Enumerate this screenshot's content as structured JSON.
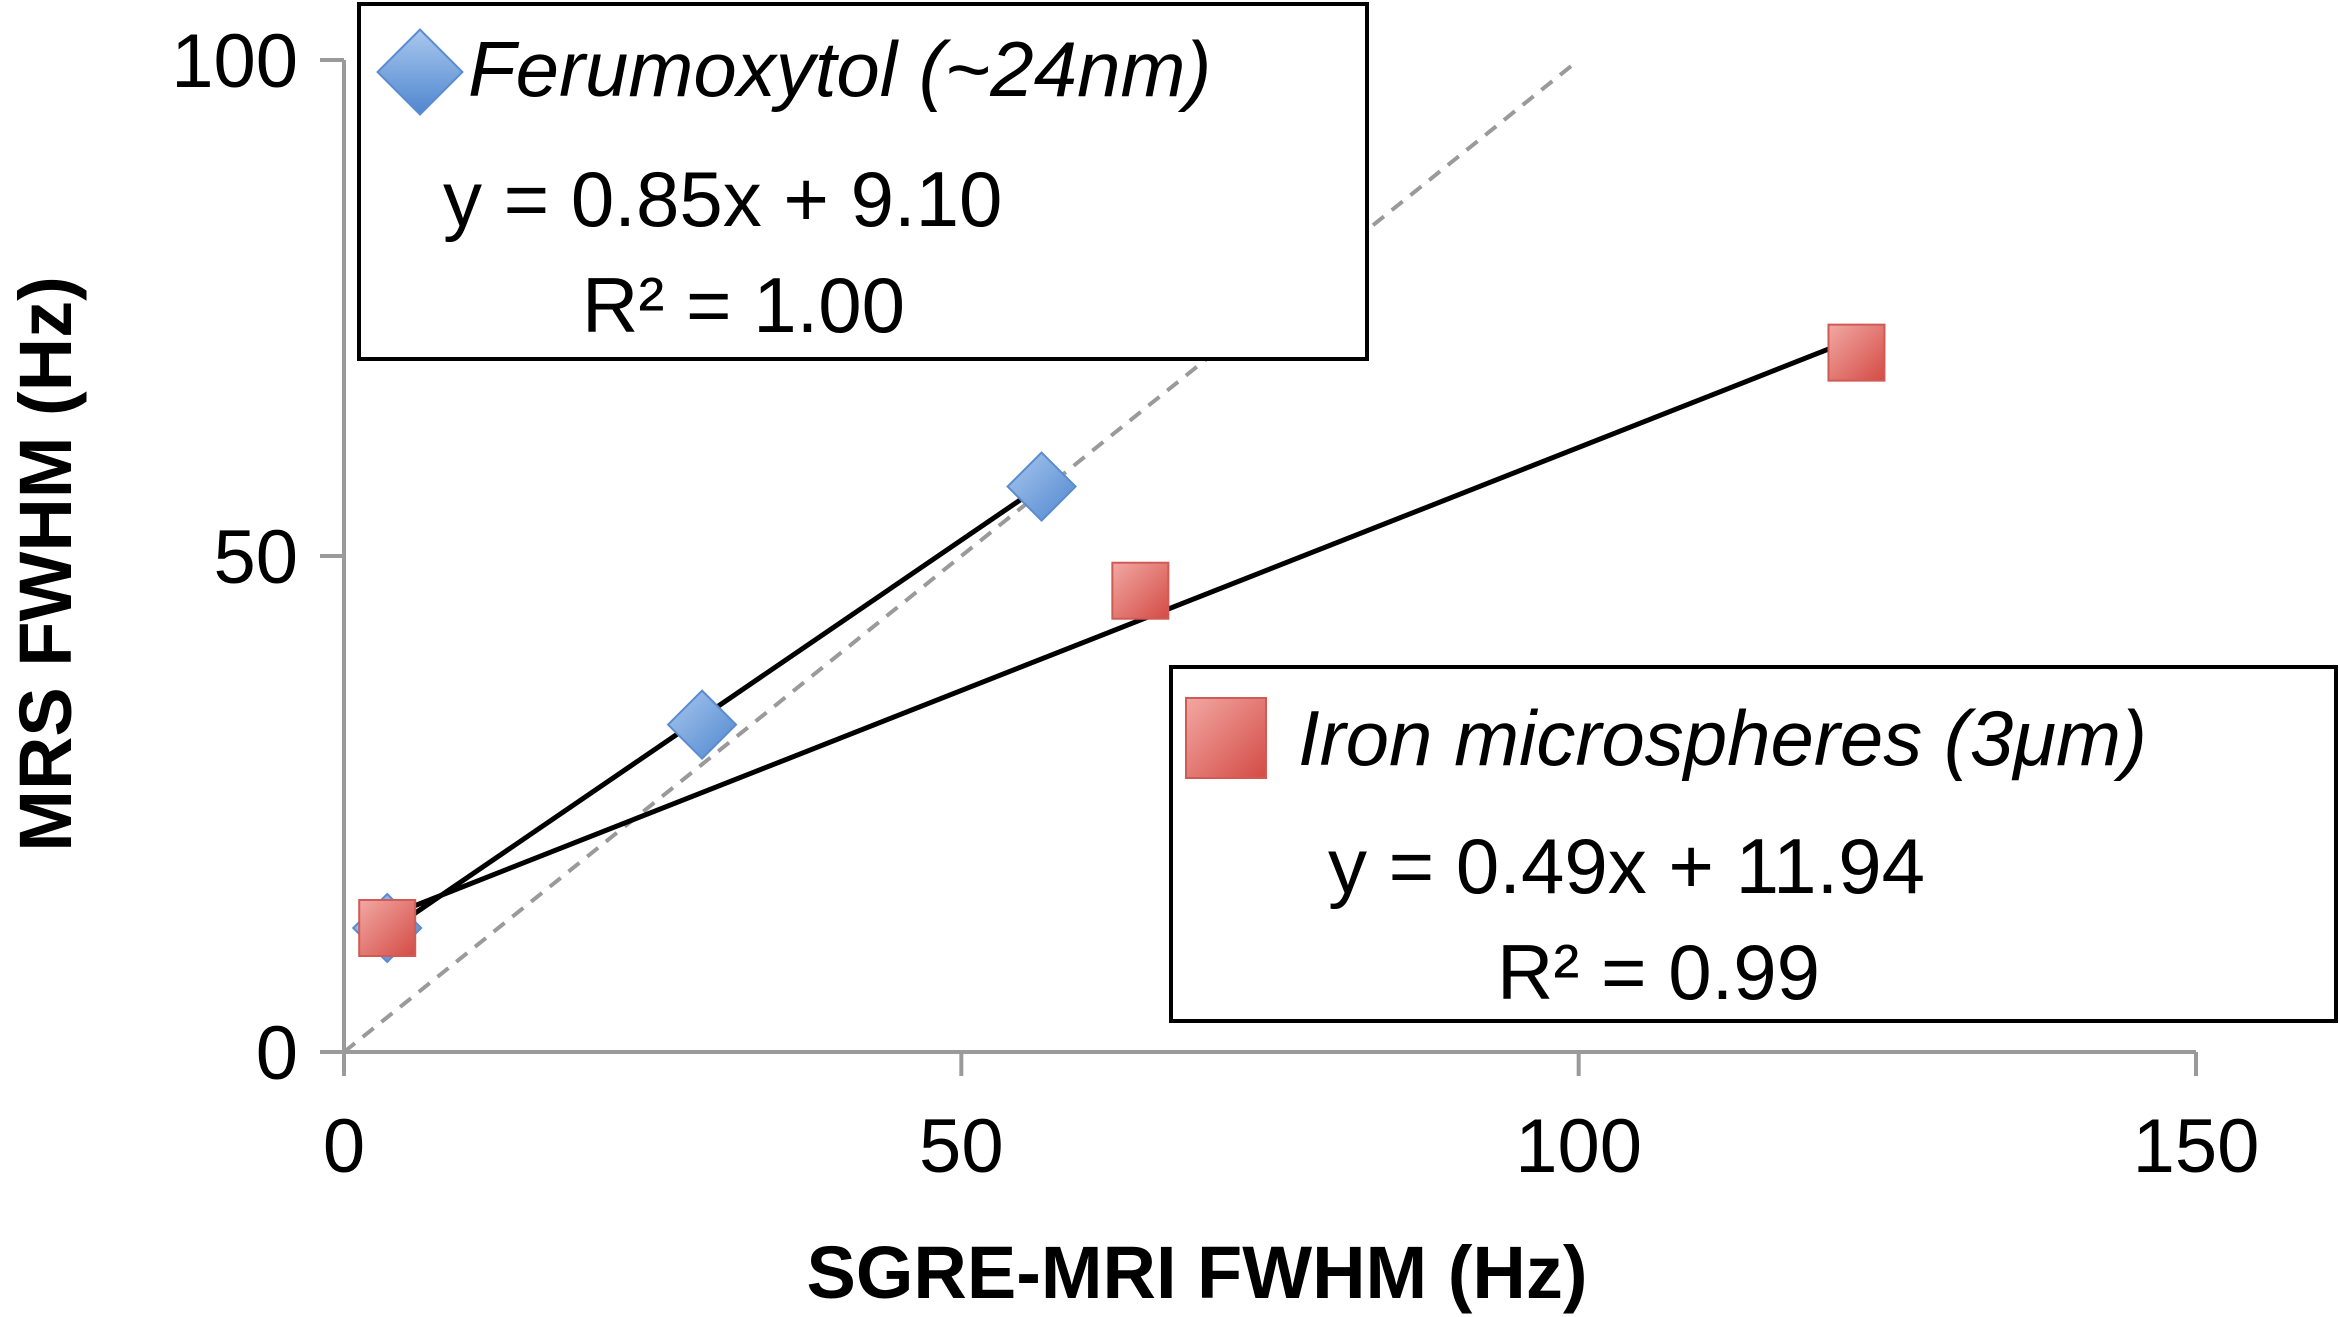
{
  "chart_data": {
    "type": "scatter",
    "xlabel": "SGRE-MRI FWHM (Hz)",
    "ylabel": "MRS FWHM (Hz)",
    "xlim": [
      0,
      150
    ],
    "ylim": [
      0,
      100
    ],
    "xticks": [
      "0",
      "50",
      "100",
      "150"
    ],
    "yticks": [
      "0",
      "50",
      "100"
    ],
    "grid": false,
    "identity_line": {
      "style": "dashed",
      "color": "#9a9a9a",
      "from": [
        0,
        0
      ],
      "to": [
        100,
        100
      ]
    },
    "series": [
      {
        "name": "Ferumoxytol (~24nm)",
        "marker": "diamond",
        "color": "#6a9bd8",
        "x": [
          3.5,
          29,
          56.5
        ],
        "y": [
          12.5,
          33,
          57
        ],
        "equation": "y = 0.85x + 9.10",
        "r2": "R² = 1.00",
        "fit": {
          "slope": 0.85,
          "intercept": 9.1,
          "x_range": [
            3.5,
            56.5
          ]
        },
        "legend_position": "top-left"
      },
      {
        "name": "Iron microspheres (3μm)",
        "marker": "square",
        "color": "#e06763",
        "x": [
          3.5,
          64.5,
          122.5
        ],
        "y": [
          12.5,
          46.5,
          70.5
        ],
        "equation": "y = 0.49x + 11.94",
        "r2": "R² = 0.99",
        "fit": {
          "slope": 0.49,
          "intercept": 11.94,
          "x_range": [
            3.5,
            122.5
          ]
        },
        "legend_position": "bottom-right"
      }
    ]
  }
}
